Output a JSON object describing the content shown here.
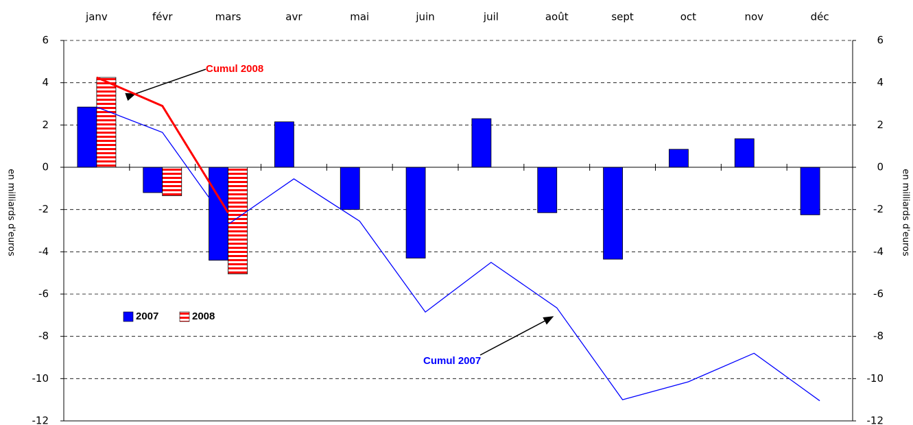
{
  "chart_data": {
    "type": "bar",
    "categories": [
      "janv",
      "févr",
      "mars",
      "avr",
      "mai",
      "juin",
      "juil",
      "août",
      "sept",
      "oct",
      "nov",
      "déc"
    ],
    "series": [
      {
        "name": "2007",
        "color": "#0000ff",
        "values": [
          2.85,
          -1.2,
          -4.4,
          2.15,
          -2.0,
          -4.3,
          2.3,
          -2.15,
          -4.35,
          0.85,
          1.35,
          -2.25
        ]
      },
      {
        "name": "2008",
        "color": "#ff0000",
        "values": [
          4.25,
          -1.35,
          -5.05,
          null,
          null,
          null,
          null,
          null,
          null,
          null,
          null,
          null
        ]
      }
    ],
    "lines": [
      {
        "name": "Cumul 2008",
        "color": "#ff0000",
        "values": [
          4.25,
          2.9,
          -2.15,
          null,
          null,
          null,
          null,
          null,
          null,
          null,
          null,
          null
        ]
      },
      {
        "name": "Cumul 2007",
        "color": "#0000ff",
        "values": [
          2.85,
          1.65,
          -2.7,
          -0.55,
          -2.55,
          -6.85,
          -4.5,
          -6.65,
          -11.0,
          -10.15,
          -8.8,
          -11.05
        ]
      }
    ],
    "ylabel": "en milliards d'euros",
    "y2label": "en milliards d'euros",
    "ylim": [
      -12,
      6
    ],
    "yticks": [
      -12,
      -10,
      -8,
      -6,
      -4,
      -2,
      0,
      2,
      4,
      6
    ],
    "y2lim": [
      -12,
      6
    ],
    "y2ticks": [
      -12,
      -10,
      -8,
      -6,
      -4,
      -2,
      0,
      2,
      4,
      6
    ],
    "grid": true,
    "legend": "lower left"
  }
}
